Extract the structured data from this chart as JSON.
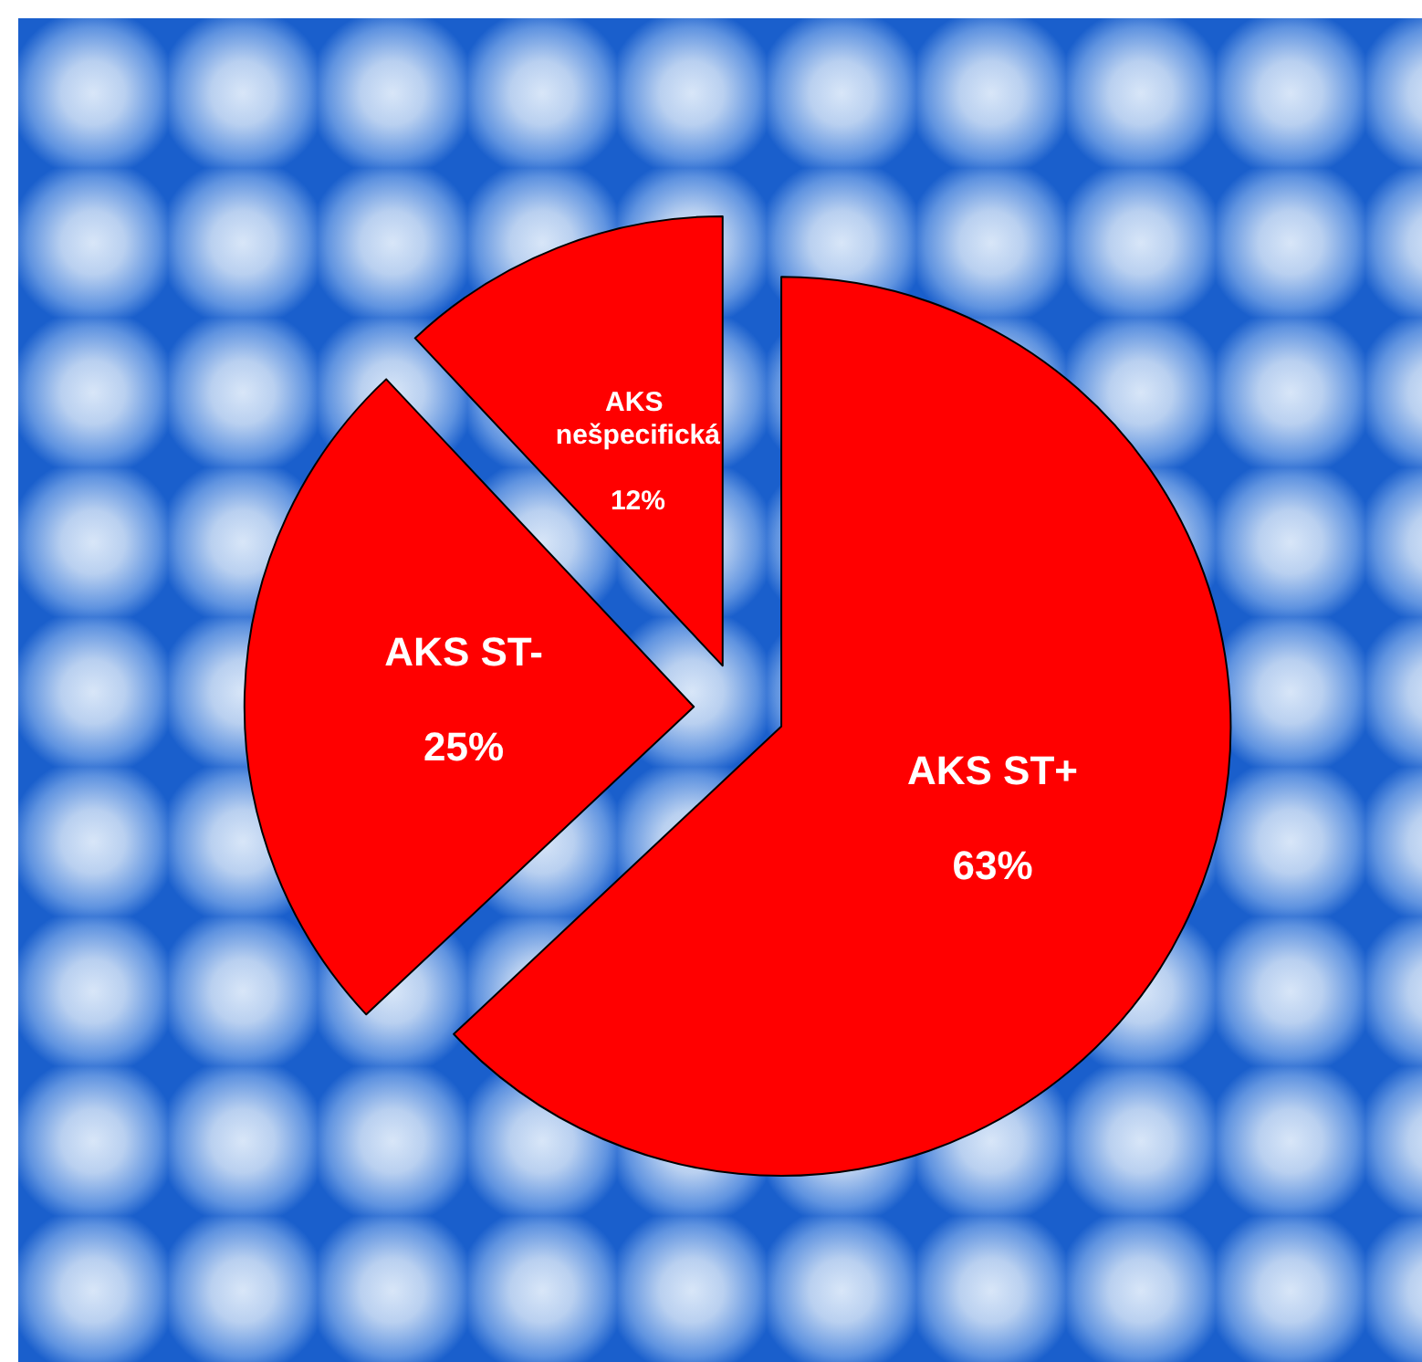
{
  "chart_data": {
    "type": "pie",
    "categories": [
      "AKS ST+",
      "AKS ST-",
      "AKS nešpecifická"
    ],
    "values": [
      63,
      25,
      12
    ],
    "colors": [
      "#ff0000",
      "#ff0000",
      "#ff0000"
    ],
    "value_labels": [
      "63%",
      "25%",
      "12%"
    ],
    "legend": false
  }
}
